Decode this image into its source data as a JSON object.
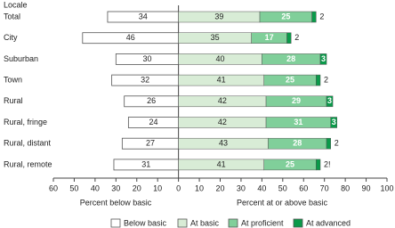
{
  "chart_data": {
    "type": "diverging-bar",
    "y_label": "Locale",
    "x_label_left": "Percent below basic",
    "x_label_right": "Percent at or above basic",
    "categories": [
      "Total",
      "City",
      "Suburban",
      "Town",
      "Rural",
      "Rural, fringe",
      "Rural, distant",
      "Rural, remote"
    ],
    "series": [
      {
        "name": "Below basic",
        "color": "#ffffff",
        "values": [
          34,
          46,
          30,
          32,
          26,
          24,
          27,
          31
        ]
      },
      {
        "name": "At basic",
        "color": "#d8ecd6",
        "values": [
          39,
          35,
          40,
          41,
          42,
          42,
          43,
          41
        ]
      },
      {
        "name": "At proficient",
        "color": "#80cf9a",
        "values": [
          25,
          17,
          28,
          25,
          29,
          31,
          28,
          25
        ]
      },
      {
        "name": "At advanced",
        "color": "#0a9a4a",
        "values": [
          2,
          2,
          3,
          2,
          3,
          3,
          2,
          2
        ],
        "value_labels": [
          "2",
          "2",
          "3",
          "2",
          "3",
          "3",
          "2",
          "2!"
        ]
      }
    ],
    "xlim": [
      -60,
      100
    ],
    "xticks": [
      {
        "value": -60,
        "label": "60"
      },
      {
        "value": -50,
        "label": "50"
      },
      {
        "value": -40,
        "label": "40"
      },
      {
        "value": -30,
        "label": "30"
      },
      {
        "value": -20,
        "label": "20"
      },
      {
        "value": -10,
        "label": "10"
      },
      0,
      10,
      20,
      30,
      40,
      50,
      60,
      70,
      80,
      90,
      100
    ]
  }
}
